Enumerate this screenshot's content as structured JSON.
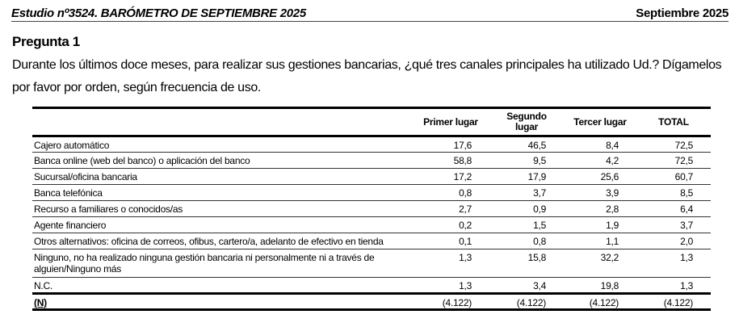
{
  "header": {
    "study": "Estudio nº3524. BARÓMETRO DE SEPTIEMBRE 2025",
    "date": "Septiembre 2025"
  },
  "question": {
    "title": "Pregunta 1",
    "text": "Durante los últimos doce meses, para realizar sus gestiones bancarias, ¿qué tres canales principales ha utilizado Ud.? Dígamelos por favor por orden, según frecuencia de uso."
  },
  "table": {
    "columns": [
      "",
      "Primer lugar",
      "Segundo lugar",
      "Tercer lugar",
      "TOTAL"
    ],
    "rows": [
      {
        "label": "Cajero automático",
        "values": [
          "17,6",
          "46,5",
          "8,4",
          "72,5"
        ]
      },
      {
        "label": "Banca online (web del banco) o aplicación del banco",
        "values": [
          "58,8",
          "9,5",
          "4,2",
          "72,5"
        ]
      },
      {
        "label": "Sucursal/oficina bancaria",
        "values": [
          "17,2",
          "17,9",
          "25,6",
          "60,7"
        ]
      },
      {
        "label": "Banca telefónica",
        "values": [
          "0,8",
          "3,7",
          "3,9",
          "8,5"
        ]
      },
      {
        "label": "Recurso a familiares o conocidos/as",
        "values": [
          "2,7",
          "0,9",
          "2,8",
          "6,4"
        ]
      },
      {
        "label": "Agente financiero",
        "values": [
          "0,2",
          "1,5",
          "1,9",
          "3,7"
        ]
      },
      {
        "label": "Otros alternativos: oficina de correos, ofibus, cartero/a, adelanto de efectivo en tienda",
        "values": [
          "0,1",
          "0,8",
          "1,1",
          "2,0"
        ]
      },
      {
        "label": "Ninguno, no ha realizado ninguna gestión bancaria ni personalmente ni a través de alguien/Ninguno más",
        "values": [
          "1,3",
          "15,8",
          "32,2",
          "1,3"
        ]
      },
      {
        "label": "N.C.",
        "values": [
          "1,3",
          "3,4",
          "19,8",
          "1,3"
        ]
      }
    ],
    "base": {
      "label": "(N)",
      "values": [
        "(4.122)",
        "(4.122)",
        "(4.122)",
        "(4.122)"
      ]
    }
  }
}
